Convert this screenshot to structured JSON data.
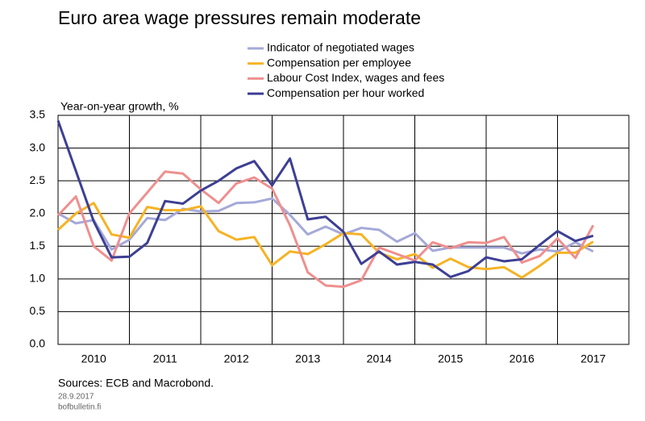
{
  "chart_data": {
    "type": "line",
    "title": "Euro area wage pressures remain moderate",
    "y_label": "Year-on-year growth, %",
    "source": "Sources: ECB and Macrobond.",
    "date": "28.9.2017",
    "site": "bofbulletin.fi",
    "x": [
      2010,
      2010.25,
      2010.5,
      2010.75,
      2011,
      2011.25,
      2011.5,
      2011.75,
      2012,
      2012.25,
      2012.5,
      2012.75,
      2013,
      2013.25,
      2013.5,
      2013.75,
      2014,
      2014.25,
      2014.5,
      2014.75,
      2015,
      2015.25,
      2015.5,
      2015.75,
      2016,
      2016.25,
      2016.5,
      2016.75,
      2017,
      2017.25,
      2017.5
    ],
    "series": [
      {
        "name": "Indicator of negotiated wages",
        "color": "#a5a9d8",
        "values": [
          2.0,
          1.85,
          1.9,
          1.45,
          1.6,
          1.93,
          1.9,
          2.07,
          2.03,
          2.04,
          2.16,
          2.17,
          2.23,
          1.98,
          1.68,
          1.8,
          1.68,
          1.78,
          1.75,
          1.57,
          1.7,
          1.43,
          1.48,
          1.48,
          1.48,
          1.48,
          1.39,
          1.45,
          1.42,
          1.56,
          1.42
        ]
      },
      {
        "name": "Compensation per employee",
        "color": "#f5b324",
        "values": [
          1.75,
          2.0,
          2.16,
          1.68,
          1.63,
          2.1,
          2.05,
          2.05,
          2.11,
          1.73,
          1.6,
          1.64,
          1.21,
          1.42,
          1.38,
          1.53,
          1.7,
          1.68,
          1.4,
          1.3,
          1.38,
          1.17,
          1.31,
          1.18,
          1.15,
          1.18,
          1.02,
          1.2,
          1.4,
          1.4,
          1.57
        ]
      },
      {
        "name": "Labour Cost Index, wages and fees",
        "color": "#ef8f8f",
        "values": [
          1.97,
          2.26,
          1.5,
          1.28,
          2.0,
          2.32,
          2.64,
          2.61,
          2.37,
          2.16,
          2.46,
          2.55,
          2.38,
          1.82,
          1.1,
          0.9,
          0.88,
          0.98,
          1.48,
          1.38,
          1.28,
          1.56,
          1.47,
          1.56,
          1.55,
          1.64,
          1.25,
          1.35,
          1.62,
          1.32,
          1.82
        ]
      },
      {
        "name": "Compensation per hour worked",
        "color": "#3d3f94",
        "values": [
          3.42,
          2.65,
          1.88,
          1.33,
          1.34,
          1.55,
          2.19,
          2.15,
          2.35,
          2.5,
          2.69,
          2.8,
          2.43,
          2.84,
          1.91,
          1.95,
          1.72,
          1.23,
          1.42,
          1.22,
          1.26,
          1.22,
          1.03,
          1.12,
          1.33,
          1.27,
          1.3,
          1.52,
          1.73,
          1.58,
          1.66
        ]
      }
    ],
    "xlim": [
      2010,
      2018
    ],
    "xgrid": [
      2011,
      2012,
      2013,
      2014,
      2015,
      2016,
      2017
    ],
    "xticks": [
      {
        "value": 2010.5,
        "label": "2010"
      },
      {
        "value": 2011.5,
        "label": "2011"
      },
      {
        "value": 2012.5,
        "label": "2012"
      },
      {
        "value": 2013.5,
        "label": "2013"
      },
      {
        "value": 2014.5,
        "label": "2014"
      },
      {
        "value": 2015.5,
        "label": "2015"
      },
      {
        "value": 2016.5,
        "label": "2016"
      },
      {
        "value": 2017.5,
        "label": "2017"
      }
    ],
    "ylim": [
      0,
      3.5
    ],
    "yticks": [
      {
        "value": 0,
        "label": "0.0"
      },
      {
        "value": 0.5,
        "label": "0.5"
      },
      {
        "value": 1,
        "label": "1.0"
      },
      {
        "value": 1.5,
        "label": "1.5"
      },
      {
        "value": 2,
        "label": "2.0"
      },
      {
        "value": 2.5,
        "label": "2.5"
      },
      {
        "value": 3,
        "label": "3.0"
      },
      {
        "value": 3.5,
        "label": "3.5"
      }
    ],
    "grid": true
  }
}
